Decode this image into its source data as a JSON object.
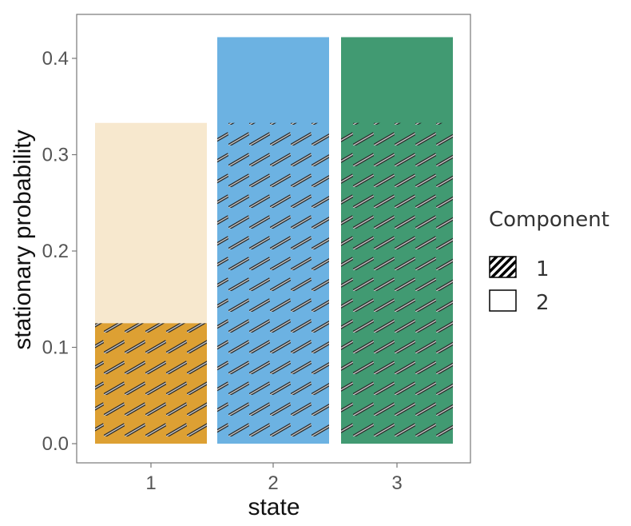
{
  "chart_data": {
    "type": "bar",
    "xlabel": "state",
    "ylabel": "stationary probability",
    "categories": [
      "1",
      "2",
      "3"
    ],
    "ylim": [
      0,
      0.43
    ],
    "yticks": [
      "0.0",
      "0.1",
      "0.2",
      "0.3",
      "0.4"
    ],
    "grid": false,
    "stacked": true,
    "series": [
      {
        "name": "1",
        "values": [
          0.125,
          0.333,
          0.333
        ],
        "pattern": "hatched"
      },
      {
        "name": "2",
        "values": [
          0.208,
          0.089,
          0.089
        ],
        "pattern": "none"
      }
    ],
    "bar_colors": {
      "1": {
        "solid": "#DDA033",
        "light": "#F7E8CE"
      },
      "2": {
        "solid": "#6CB2E2",
        "light": "#6CB2E2"
      },
      "3": {
        "solid": "#419A72",
        "light": "#419A72"
      }
    },
    "solid_to": [
      0.125,
      0.422,
      0.422
    ],
    "legend": {
      "title": "Component",
      "placement": "right"
    }
  }
}
